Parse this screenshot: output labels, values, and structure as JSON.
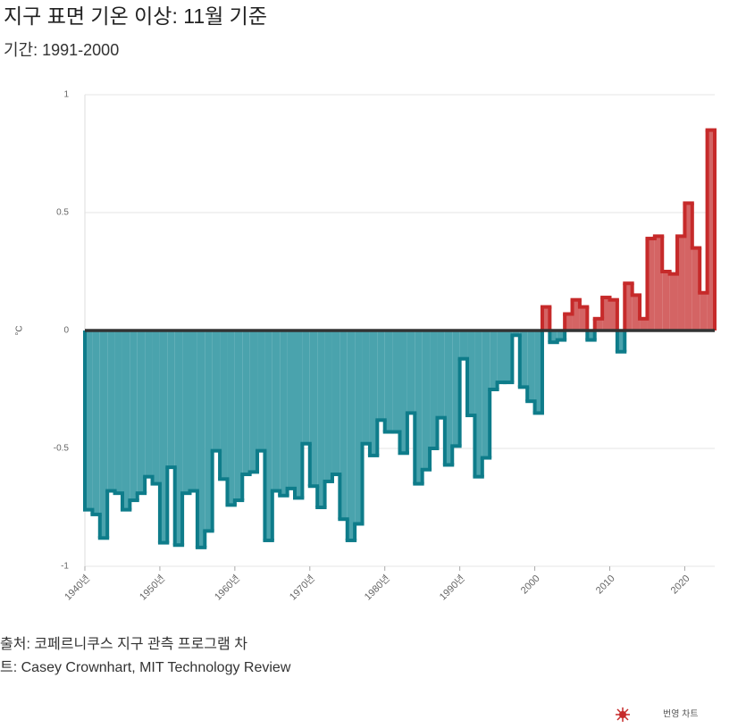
{
  "chart_data": {
    "type": "step",
    "title": "지구 표면 기온 이상: 11월 기준",
    "subtitle": "기간: 1991-2000",
    "y_label": "°C",
    "source": [
      "출처: 코페르니쿠스 지구 관측 프로그램 차",
      "트: Casey Crownhart, MIT Technology Review"
    ],
    "footer": "번영 차트",
    "x": [
      1940,
      1941,
      1942,
      1943,
      1944,
      1945,
      1946,
      1947,
      1948,
      1949,
      1950,
      1951,
      1952,
      1953,
      1954,
      1955,
      1956,
      1957,
      1958,
      1959,
      1960,
      1961,
      1962,
      1963,
      1964,
      1965,
      1966,
      1967,
      1968,
      1969,
      1970,
      1971,
      1972,
      1973,
      1974,
      1975,
      1976,
      1977,
      1978,
      1979,
      1980,
      1981,
      1982,
      1983,
      1984,
      1985,
      1986,
      1987,
      1988,
      1989,
      1990,
      1991,
      1992,
      1993,
      1994,
      1995,
      1996,
      1997,
      1998,
      1999,
      2000,
      2001,
      2002,
      2003,
      2004,
      2005,
      2006,
      2007,
      2008,
      2009,
      2010,
      2011,
      2012,
      2013,
      2014,
      2015,
      2016,
      2017,
      2018,
      2019,
      2020,
      2021,
      2022,
      2023
    ],
    "values": [
      -0.76,
      -0.78,
      -0.88,
      -0.68,
      -0.69,
      -0.76,
      -0.72,
      -0.69,
      -0.62,
      -0.65,
      -0.9,
      -0.58,
      -0.91,
      -0.69,
      -0.68,
      -0.92,
      -0.85,
      -0.51,
      -0.63,
      -0.74,
      -0.72,
      -0.61,
      -0.6,
      -0.51,
      -0.89,
      -0.68,
      -0.7,
      -0.67,
      -0.71,
      -0.48,
      -0.66,
      -0.75,
      -0.64,
      -0.61,
      -0.8,
      -0.89,
      -0.82,
      -0.48,
      -0.53,
      -0.38,
      -0.43,
      -0.43,
      -0.52,
      -0.35,
      -0.65,
      -0.59,
      -0.5,
      -0.37,
      -0.57,
      -0.49,
      -0.12,
      -0.36,
      -0.62,
      -0.54,
      -0.25,
      -0.22,
      -0.22,
      -0.02,
      -0.24,
      -0.3,
      -0.35,
      0.1,
      -0.05,
      -0.04,
      0.07,
      0.13,
      0.1,
      -0.04,
      0.05,
      0.14,
      0.13,
      -0.09,
      0.2,
      0.15,
      0.05,
      0.39,
      0.4,
      0.25,
      0.24,
      0.4,
      0.54,
      0.35,
      0.16,
      0.85
    ],
    "positive_color": "#c62a2a",
    "positive_fill": "#d46464",
    "negative_color": "#0e7c8a",
    "negative_fill": "#4aa3ad",
    "xlim": [
      1940,
      2024
    ],
    "ylim": [
      -1,
      1
    ],
    "xticks": [
      {
        "value": 1940,
        "label": "1940년"
      },
      {
        "value": 1950,
        "label": "1950년"
      },
      {
        "value": 1960,
        "label": "1960년"
      },
      {
        "value": 1970,
        "label": "1970년"
      },
      {
        "value": 1980,
        "label": "1980년"
      },
      {
        "value": 1990,
        "label": "1990년"
      },
      2000,
      2010,
      2020
    ],
    "yticks": [
      -1,
      -0.5,
      0,
      0.5,
      1
    ],
    "grid": true
  }
}
